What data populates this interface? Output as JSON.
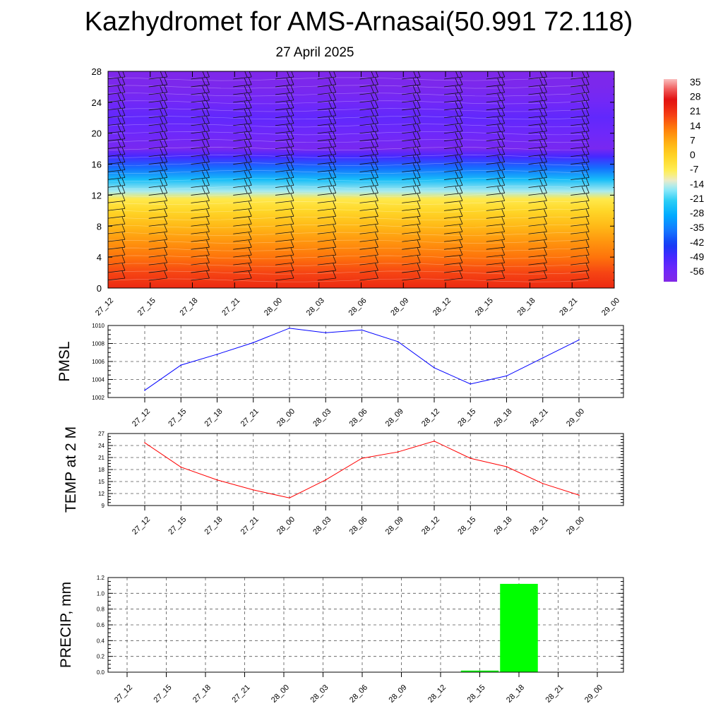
{
  "title": "Kazhydromet for AMS-Arnasai(50.991 72.118)",
  "subtitle": "27 April 2025",
  "time_labels": [
    "27_12",
    "27_15",
    "27_18",
    "27_21",
    "28_00",
    "28_03",
    "28_06",
    "28_09",
    "28_12",
    "28_15",
    "28_18",
    "28_21",
    "29_00"
  ],
  "chart_data": [
    {
      "type": "heatmap",
      "ylim": [
        0,
        28
      ],
      "y_ticks": [
        "0",
        "4",
        "8",
        "12",
        "16",
        "20",
        "24",
        "28"
      ],
      "x": [
        "27_12",
        "27_15",
        "27_18",
        "27_21",
        "28_00",
        "28_03",
        "28_06",
        "28_09",
        "28_12",
        "28_15",
        "28_18",
        "28_21",
        "29_00"
      ],
      "colorbar": {
        "range": [
          -60,
          38
        ],
        "ticks": [
          "35",
          "28",
          "21",
          "14",
          "7",
          "0",
          "-7",
          "-14",
          "-21",
          "-28",
          "-35",
          "-42",
          "-49",
          "-56"
        ]
      },
      "temperature_profile": [
        {
          "y": 0,
          "value": 24
        },
        {
          "y": 2,
          "value": 20
        },
        {
          "y": 4,
          "value": 15
        },
        {
          "y": 6,
          "value": 11
        },
        {
          "y": 8,
          "value": 6
        },
        {
          "y": 10,
          "value": 0
        },
        {
          "y": 11.5,
          "value": -5
        },
        {
          "y": 12.5,
          "value": -14
        },
        {
          "y": 14,
          "value": -24
        },
        {
          "y": 15.5,
          "value": -36
        },
        {
          "y": 17,
          "value": -48
        },
        {
          "y": 18,
          "value": -57
        },
        {
          "y": 20,
          "value": -54
        },
        {
          "y": 22,
          "value": -52
        },
        {
          "y": 24,
          "value": -55
        },
        {
          "y": 26,
          "value": -58
        },
        {
          "y": 28,
          "value": -59
        }
      ],
      "wind_barbs": true
    },
    {
      "type": "line",
      "ylabel": "PMSL",
      "ylim": [
        1002,
        1010
      ],
      "y_ticks": [
        "1002",
        "1004",
        "1006",
        "1008",
        "1010"
      ],
      "x": [
        "27_12",
        "27_15",
        "27_18",
        "27_21",
        "28_00",
        "28_03",
        "28_06",
        "28_09",
        "28_12",
        "28_15",
        "28_18",
        "28_21",
        "29_00"
      ],
      "values": [
        1002.8,
        1005.6,
        1006.8,
        1008.1,
        1009.7,
        1009.2,
        1009.5,
        1008.2,
        1005.3,
        1003.5,
        1004.4,
        1006.4,
        1008.4
      ],
      "color": "#0000ff",
      "grid": true
    },
    {
      "type": "line",
      "ylabel": "TEMP at 2 M",
      "ylim": [
        9,
        27
      ],
      "y_ticks": [
        "9",
        "12",
        "15",
        "18",
        "21",
        "24",
        "27"
      ],
      "x": [
        "27_12",
        "27_15",
        "27_18",
        "27_21",
        "28_00",
        "28_03",
        "28_06",
        "28_09",
        "28_12",
        "28_15",
        "28_18",
        "28_21",
        "29_00"
      ],
      "values": [
        24.7,
        18.6,
        15.4,
        12.9,
        10.9,
        15.4,
        20.8,
        22.4,
        25.1,
        20.8,
        18.7,
        14.5,
        11.6
      ],
      "color": "#ff0000",
      "grid": true
    },
    {
      "type": "bar",
      "ylabel": "PRECIP, mm",
      "ylim": [
        0,
        1.2
      ],
      "y_ticks": [
        "0.0",
        "0.2",
        "0.4",
        "0.6",
        "0.8",
        "1.0",
        "1.2"
      ],
      "categories": [
        "27_12",
        "27_15",
        "27_18",
        "27_21",
        "28_00",
        "28_03",
        "28_06",
        "28_09",
        "28_12",
        "28_15",
        "28_18",
        "28_21",
        "29_00"
      ],
      "values": [
        0,
        0,
        0,
        0,
        0,
        0,
        0,
        0,
        0,
        0.02,
        1.12,
        0,
        0
      ],
      "color": "#00ff00",
      "grid": true
    }
  ]
}
